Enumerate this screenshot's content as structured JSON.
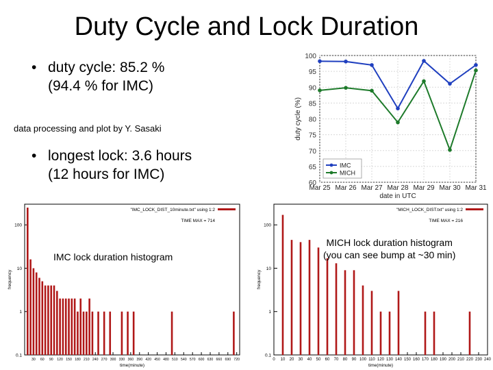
{
  "slide": {
    "title": "Duty Cycle and Lock Duration",
    "bullet1_line1": "duty cycle: 85.2 %",
    "bullet1_line2": "(94.4 % for IMC)",
    "credit": "data processing and plot by Y. Sasaki",
    "bullet2_line1": "longest lock: 3.6 hours",
    "bullet2_line2": "(12 hours for IMC)",
    "imc_caption": "IMC lock duration histogram",
    "mich_caption_line1": "MICH lock duration histogram",
    "mich_caption_line2": "(you can see bump at ~30 min)",
    "bullet_glyph": "•"
  },
  "chart_data": [
    {
      "type": "line",
      "categories": [
        "Mar 25",
        "Mar 26",
        "Mar 27",
        "Mar 28",
        "Mar 29",
        "Mar 30",
        "Mar 31"
      ],
      "series": [
        {
          "name": "IMC",
          "color": "#1f3fbf",
          "values": [
            98.2,
            98.1,
            97.0,
            83.3,
            98.3,
            91.1,
            97.0
          ]
        },
        {
          "name": "MICH",
          "color": "#1d7a2a",
          "values": [
            89.0,
            89.8,
            88.9,
            78.9,
            91.9,
            70.2,
            95.3
          ]
        }
      ],
      "xlabel": "date in UTC",
      "ylabel": "duty cycle (%)",
      "ylim": [
        60,
        100
      ],
      "yticks": [
        60,
        65,
        70,
        75,
        80,
        85,
        90,
        95,
        100
      ],
      "grid": true,
      "legend": "bottom-left"
    },
    {
      "type": "bar",
      "title": "IMC lock duration histogram",
      "legend_label": "\"IMC_LOCK_DIST_10minute.txt\" using 1:2",
      "annotation": "TIME MAX = 714",
      "xlabel": "time(minute)",
      "ylabel": "frequency",
      "yscale": "log",
      "ylim": [
        0.1,
        300
      ],
      "yticks": [
        "0.1",
        "1",
        "10",
        "100"
      ],
      "xlim": [
        0,
        730
      ],
      "xticks": [
        30,
        60,
        90,
        120,
        150,
        180,
        210,
        240,
        270,
        300,
        330,
        360,
        390,
        420,
        450,
        480,
        510,
        540,
        570,
        600,
        630,
        660,
        690,
        720
      ],
      "x": [
        10,
        20,
        30,
        40,
        50,
        60,
        70,
        80,
        90,
        100,
        110,
        120,
        130,
        140,
        150,
        160,
        170,
        180,
        190,
        200,
        210,
        220,
        230,
        250,
        270,
        290,
        330,
        350,
        370,
        500,
        710
      ],
      "values": [
        250,
        16,
        10,
        8,
        6,
        5,
        4,
        4,
        4,
        4,
        3,
        2,
        2,
        2,
        2,
        2,
        2,
        1,
        2,
        1,
        1,
        2,
        1,
        1,
        1,
        1,
        1,
        1,
        1,
        1,
        1
      ]
    },
    {
      "type": "bar",
      "title": "MICH lock duration histogram",
      "legend_label": "\"MICH_LOCK_DIST.txt\" using 1:2",
      "annotation": "TIME MAX = 216",
      "xlabel": "time(minute)",
      "ylabel": "frequency",
      "yscale": "log",
      "ylim": [
        0.1,
        300
      ],
      "yticks": [
        "0.1",
        "1",
        "10",
        "100"
      ],
      "xlim": [
        0,
        240
      ],
      "xticks": [
        0,
        10,
        20,
        30,
        40,
        50,
        60,
        70,
        80,
        90,
        100,
        110,
        120,
        130,
        140,
        150,
        160,
        170,
        180,
        190,
        200,
        210,
        220,
        230,
        240
      ],
      "x": [
        10,
        20,
        30,
        40,
        50,
        60,
        70,
        80,
        90,
        100,
        110,
        120,
        130,
        140,
        170,
        180,
        220
      ],
      "values": [
        170,
        45,
        40,
        45,
        30,
        17,
        13,
        9,
        9,
        4,
        3,
        1,
        1,
        3,
        1,
        1,
        1
      ]
    }
  ]
}
